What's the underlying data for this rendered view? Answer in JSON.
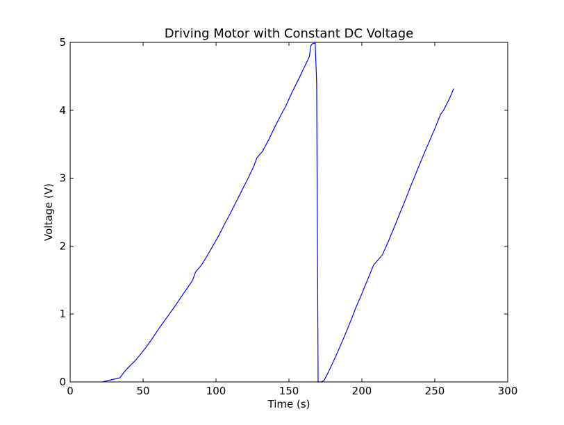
{
  "chart_data": {
    "type": "line",
    "title": "Driving Motor with Constant DC Voltage",
    "xlabel": "Time (s)",
    "ylabel": "Voltage (V)",
    "xlim": [
      0,
      300
    ],
    "ylim": [
      0,
      5
    ],
    "x_ticks": [
      0,
      50,
      100,
      150,
      200,
      250,
      300
    ],
    "y_ticks": [
      0,
      1,
      2,
      3,
      4,
      5
    ],
    "grid": false,
    "legend": "none",
    "series": [
      {
        "color": "#0000ff",
        "x": [
          22,
          26,
          34,
          38,
          42,
          44,
          48,
          52,
          56,
          60,
          64,
          68,
          72,
          76,
          80,
          84,
          86,
          90,
          94,
          98,
          102,
          106,
          110,
          114,
          118,
          122,
          126,
          128,
          132,
          136,
          140,
          144,
          148,
          152,
          156,
          160,
          164,
          165,
          166,
          168,
          169,
          170,
          172,
          174,
          176,
          180,
          184,
          188,
          192,
          196,
          200,
          204,
          208,
          212,
          214,
          218,
          222,
          226,
          230,
          234,
          238,
          242,
          246,
          250,
          254,
          256,
          260,
          263
        ],
        "y": [
          0.0,
          0.02,
          0.06,
          0.17,
          0.26,
          0.3,
          0.4,
          0.51,
          0.63,
          0.76,
          0.88,
          1.0,
          1.12,
          1.25,
          1.37,
          1.5,
          1.62,
          1.72,
          1.86,
          2.01,
          2.16,
          2.33,
          2.49,
          2.66,
          2.83,
          3.0,
          3.18,
          3.3,
          3.4,
          3.56,
          3.74,
          3.91,
          4.07,
          4.26,
          4.43,
          4.61,
          4.79,
          4.95,
          4.98,
          4.99,
          4.4,
          0.0,
          0.0,
          0.02,
          0.1,
          0.28,
          0.47,
          0.67,
          0.88,
          1.1,
          1.3,
          1.51,
          1.72,
          1.82,
          1.87,
          2.06,
          2.27,
          2.48,
          2.69,
          2.91,
          3.12,
          3.33,
          3.53,
          3.73,
          3.94,
          4.0,
          4.17,
          4.32
        ]
      }
    ]
  }
}
